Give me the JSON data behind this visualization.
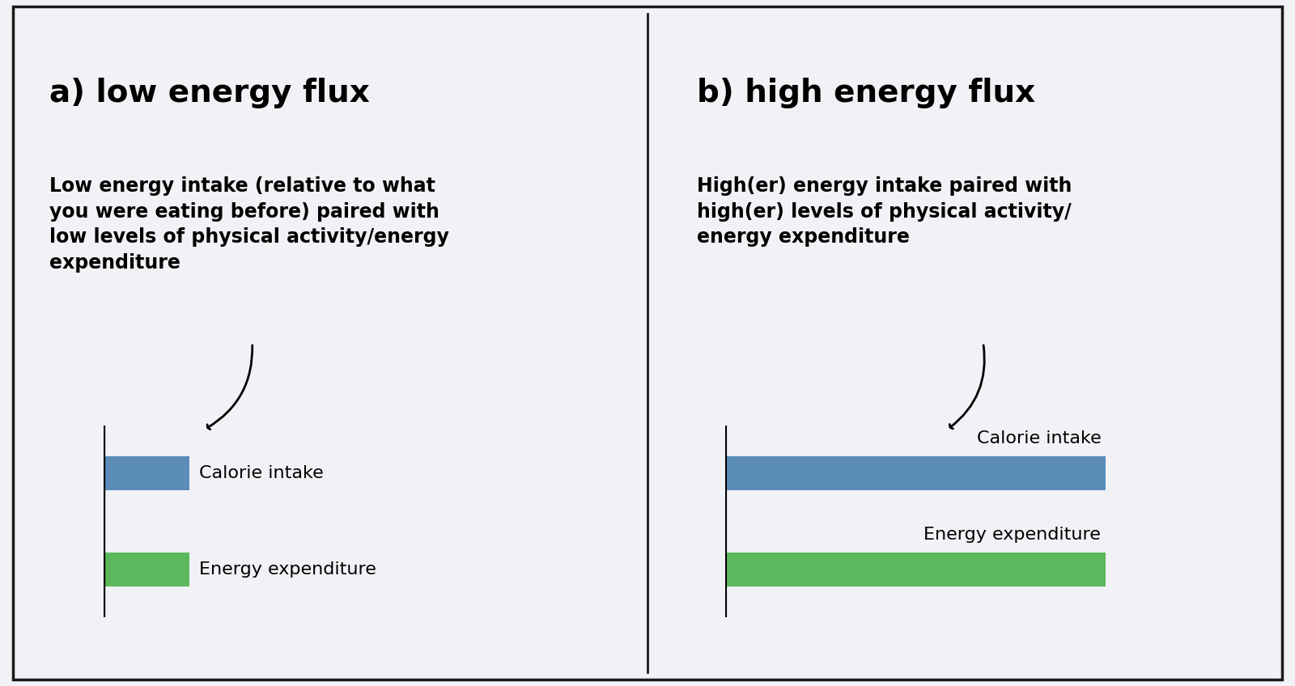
{
  "fig_width": 16.0,
  "fig_height": 8.48,
  "background_color": "#f0f2f5",
  "border_color": "#1a1a1a",
  "panel_a": {
    "title": "a) low energy flux",
    "description": "Low energy intake (relative to what\nyou were eating before) paired with\nlow levels of physical activity/energy\nexpenditure",
    "calorie_bar": 0.28,
    "expenditure_bar": 0.28,
    "calorie_label": "Calorie intake",
    "expenditure_label": "Energy expenditure"
  },
  "panel_b": {
    "title": "b) high energy flux",
    "description": "High(er) energy intake paired with\nhigh(er) levels of physical activity/\nenergy expenditure",
    "calorie_bar": 0.85,
    "expenditure_bar": 0.85,
    "calorie_label": "Calorie intake",
    "expenditure_label": "Energy expenditure"
  },
  "bar_height": 0.35,
  "calorie_color": "#5b8db8",
  "expenditure_color": "#5cb85c",
  "title_fontsize": 28,
  "desc_fontsize": 17,
  "label_fontsize": 16
}
